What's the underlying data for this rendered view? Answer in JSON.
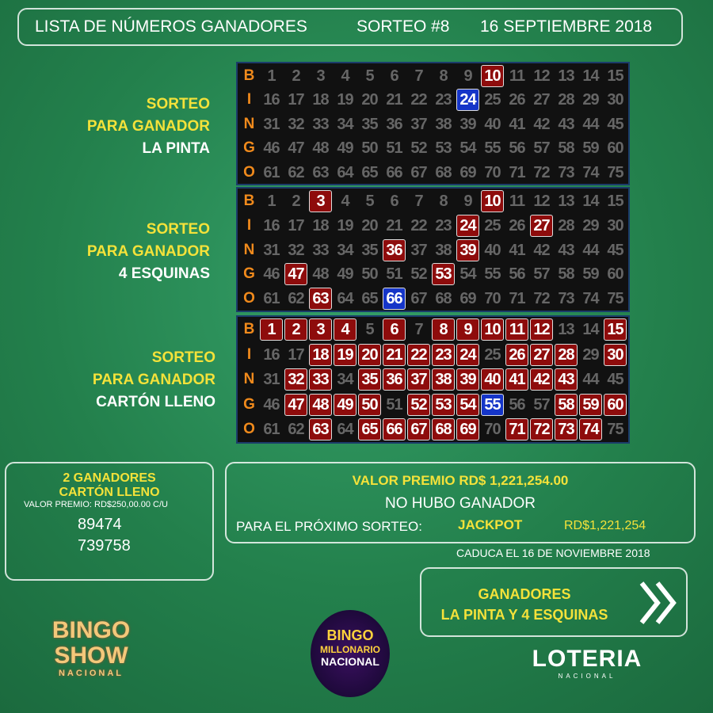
{
  "header": {
    "title": "LISTA DE NÚMEROS GANADORES",
    "draw": "SORTEO #8",
    "date": "16 SEPTIEMBRE 2018"
  },
  "grid": {
    "letters": [
      "B",
      "I",
      "N",
      "G",
      "O"
    ],
    "rows": [
      [
        1,
        2,
        3,
        4,
        5,
        6,
        7,
        8,
        9,
        10,
        11,
        12,
        13,
        14,
        15
      ],
      [
        16,
        17,
        18,
        19,
        20,
        21,
        22,
        23,
        24,
        25,
        26,
        27,
        28,
        29,
        30
      ],
      [
        31,
        32,
        33,
        34,
        35,
        36,
        37,
        38,
        39,
        40,
        41,
        42,
        43,
        44,
        45
      ],
      [
        46,
        47,
        48,
        49,
        50,
        51,
        52,
        53,
        54,
        55,
        56,
        57,
        58,
        59,
        60
      ],
      [
        61,
        62,
        63,
        64,
        65,
        66,
        67,
        68,
        69,
        70,
        71,
        72,
        73,
        74,
        75
      ]
    ]
  },
  "boards": [
    {
      "label": [
        "SORTEO",
        "PARA GANADOR",
        "LA PINTA"
      ],
      "marked": [
        10
      ],
      "last": 24
    },
    {
      "label": [
        "SORTEO",
        "PARA GANADOR",
        "4 ESQUINAS"
      ],
      "marked": [
        3,
        10,
        24,
        27,
        36,
        39,
        47,
        53,
        63
      ],
      "last": 66
    },
    {
      "label": [
        "SORTEO",
        "PARA GANADOR",
        "CARTÓN LLENO"
      ],
      "marked": [
        1,
        2,
        3,
        4,
        6,
        8,
        9,
        10,
        11,
        12,
        15,
        18,
        19,
        20,
        21,
        22,
        23,
        24,
        26,
        27,
        28,
        30,
        32,
        33,
        35,
        36,
        37,
        38,
        39,
        40,
        41,
        42,
        43,
        47,
        48,
        49,
        50,
        52,
        53,
        54,
        58,
        59,
        60,
        63,
        65,
        66,
        67,
        68,
        69,
        71,
        72,
        73,
        74
      ],
      "last": 55
    }
  ],
  "winners": {
    "title": "2 GANADORES",
    "subtitle": "CARTÓN LLENO",
    "prize": "VALOR PREMIO: RD$250,00.00 C/U",
    "tickets": [
      "89474",
      "739758"
    ]
  },
  "prize": {
    "title": "VALOR PREMIO RD$ 1,221,254.00",
    "status": "NO HUBO GANADOR",
    "next_label": "PARA EL PRÓXIMO SORTEO:",
    "next_type": "JACKPOT",
    "next_amount": "RD$1,221,254"
  },
  "expiry": "CADUCA EL 16 DE NOVIEMBRE 2018",
  "link": {
    "line1": "GANADORES",
    "line2": "LA PINTA Y 4 ESQUINAS"
  },
  "logos": {
    "bingo_show": [
      "BINGO",
      "SHOW",
      "NACIONAL"
    ],
    "millonario": [
      "BINGO",
      "MILLONARIO",
      "NACIONAL"
    ],
    "loteria": [
      "LOTERIA",
      "NACIONAL"
    ]
  }
}
